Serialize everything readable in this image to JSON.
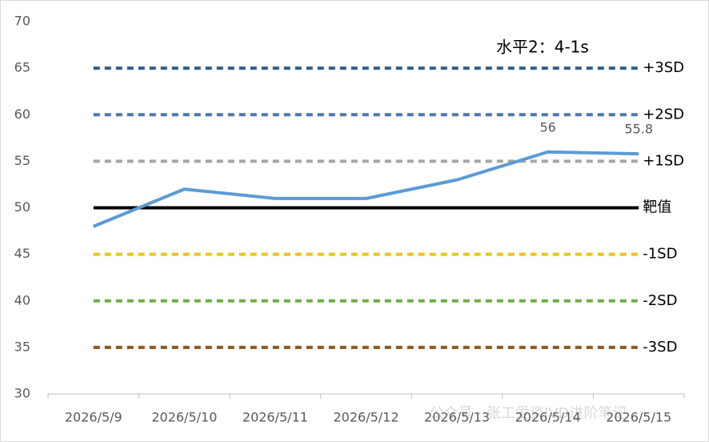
{
  "chart_data": {
    "type": "line",
    "annotation": "水平2：4-1s",
    "watermark": "公众号 · 张工爱谈IVD进阶笔记",
    "categories": [
      "2026/5/9",
      "2026/5/10",
      "2026/5/11",
      "2026/5/12",
      "2026/5/13",
      "2026/5/14",
      "2026/5/15"
    ],
    "values": [
      48,
      52,
      51,
      51,
      53,
      56,
      55.8
    ],
    "value_labels": [
      null,
      null,
      null,
      null,
      null,
      "56",
      "55.8"
    ],
    "color": "#5b9bd5",
    "ylim": [
      30,
      70
    ],
    "yticks": [
      30,
      35,
      40,
      45,
      50,
      55,
      60,
      65,
      70
    ],
    "grid": false,
    "reference_lines": [
      {
        "name": "+3SD",
        "value": 65,
        "color": "#2f5f8a",
        "dashed": true
      },
      {
        "name": "+2SD",
        "value": 60,
        "color": "#4a78b0",
        "dashed": true
      },
      {
        "name": "+1SD",
        "value": 55,
        "color": "#a6a6a6",
        "dashed": true
      },
      {
        "name": "靶值",
        "value": 50,
        "color": "#000000",
        "dashed": false
      },
      {
        "name": "-1SD",
        "value": 45,
        "color": "#e8c619",
        "dashed": true
      },
      {
        "name": "-2SD",
        "value": 40,
        "color": "#70ad47",
        "dashed": true
      },
      {
        "name": "-3SD",
        "value": 35,
        "color": "#8b5a1f",
        "dashed": true
      }
    ]
  }
}
